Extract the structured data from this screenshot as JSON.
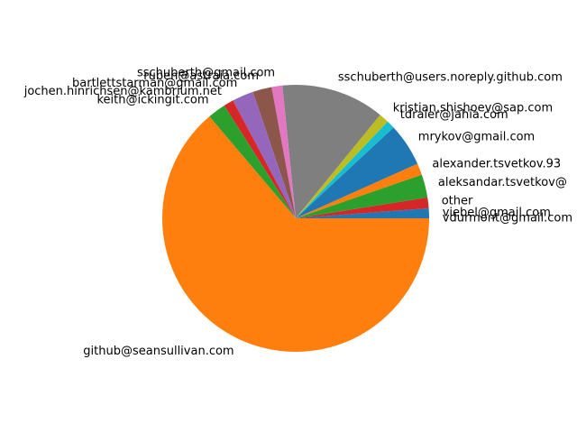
{
  "chart_data": {
    "type": "pie",
    "title": "",
    "start_angle_deg": 0,
    "direction": "counterclockwise",
    "slices": [
      {
        "label": "viebel@gmail.com",
        "value": 1.2,
        "color": "#1f77b4"
      },
      {
        "label": "other",
        "value": 1.3,
        "color": "#d62728"
      },
      {
        "label": "aleksandar.tsvetkov@",
        "value": 2.8,
        "color": "#2ca02c"
      },
      {
        "label": "alexander.tsvetkov.93",
        "value": 1.4,
        "color": "#ff7f0e"
      },
      {
        "label": "mrykov@gmail.com",
        "value": 5.2,
        "color": "#1f77b4"
      },
      {
        "label": "tdraier@jahia.com",
        "value": 1.0,
        "color": "#17becf"
      },
      {
        "label": "kristian.shishoev@sap.com",
        "value": 1.2,
        "color": "#bcbd22"
      },
      {
        "label": "sschuberth@users.noreply.github.com",
        "value": 12.5,
        "color": "#7f7f7f"
      },
      {
        "label": "sschuberth@gmail.com",
        "value": 1.3,
        "color": "#e377c2"
      },
      {
        "label": "ruben@astraia.com",
        "value": 2.3,
        "color": "#8c564b"
      },
      {
        "label": "bartlettstarman@gmail.com",
        "value": 2.6,
        "color": "#9467bd"
      },
      {
        "label": "jochen.hinrichsen@kambrium.net",
        "value": 1.2,
        "color": "#d62728"
      },
      {
        "label": "keith@ickingit.com",
        "value": 2.2,
        "color": "#2ca02c"
      },
      {
        "label": "github@seansullivan.com",
        "value": 63.8,
        "color": "#ff7f0e"
      },
      {
        "label": "vdurmont@gmail.com",
        "value": 0.0,
        "color": "#1f77b4"
      }
    ]
  }
}
